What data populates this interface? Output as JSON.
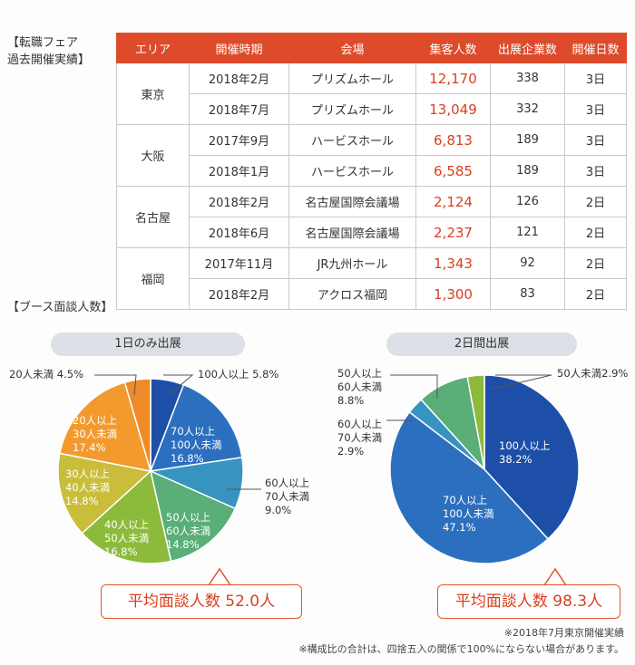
{
  "history_title": "【転職フェア\n過去開催実績】",
  "history_table": {
    "headers": [
      "エリア",
      "開催時期",
      "会場",
      "集客人数",
      "出展企業数",
      "開催日数"
    ],
    "groups": [
      {
        "area": "東京",
        "rows": [
          {
            "date": "2018年2月",
            "venue": "プリズムホール",
            "visitors": "12,170",
            "exhibitors": "338",
            "days": "3日"
          },
          {
            "date": "2018年7月",
            "venue": "プリズムホール",
            "visitors": "13,049",
            "exhibitors": "332",
            "days": "3日"
          }
        ]
      },
      {
        "area": "大阪",
        "rows": [
          {
            "date": "2017年9月",
            "venue": "ハービスホール",
            "visitors": "6,813",
            "exhibitors": "189",
            "days": "3日"
          },
          {
            "date": "2018年1月",
            "venue": "ハービスホール",
            "visitors": "6,585",
            "exhibitors": "189",
            "days": "3日"
          }
        ]
      },
      {
        "area": "名古屋",
        "rows": [
          {
            "date": "2018年2月",
            "venue": "名古屋国際会議場",
            "visitors": "2,124",
            "exhibitors": "126",
            "days": "2日"
          },
          {
            "date": "2018年6月",
            "venue": "名古屋国際会議場",
            "visitors": "2,237",
            "exhibitors": "121",
            "days": "2日"
          }
        ]
      },
      {
        "area": "福岡",
        "rows": [
          {
            "date": "2017年11月",
            "venue": "JR九州ホール",
            "visitors": "1,343",
            "exhibitors": "92",
            "days": "2日"
          },
          {
            "date": "2018年2月",
            "venue": "アクロス福岡",
            "visitors": "1,300",
            "exhibitors": "83",
            "days": "2日"
          }
        ]
      }
    ]
  },
  "booth_title": "【ブース面談人数】",
  "chart_data": [
    {
      "type": "pie",
      "title": "1日のみ出展",
      "slices": [
        {
          "label": "100人以上 5.8%",
          "value": 5.8,
          "color": "#1e4fa8"
        },
        {
          "label": "70人以上\n100人未満\n16.8%",
          "value": 16.8,
          "color": "#2d6fbf"
        },
        {
          "label": "60人以上\n70人未満\n9.0%",
          "value": 9.0,
          "color": "#3794c0"
        },
        {
          "label": "50人以上\n60人未満\n14.8%",
          "value": 14.8,
          "color": "#5aae78"
        },
        {
          "label": "40人以上\n50人未満\n16.8%",
          "value": 16.8,
          "color": "#8cbb3c"
        },
        {
          "label": "30人以上\n40人未満\n14.8%",
          "value": 14.8,
          "color": "#c9bd3a"
        },
        {
          "label": "20人以上\n30人未満\n17.4%",
          "value": 17.4,
          "color": "#f39a2f"
        },
        {
          "label": "20人未満 4.5%",
          "value": 4.5,
          "color": "#ee8a28"
        }
      ],
      "average": "平均面談人数 52.0人"
    },
    {
      "type": "pie",
      "title": "2日間出展",
      "slices": [
        {
          "label": "100人以上\n38.2%",
          "value": 38.2,
          "color": "#1e4fa8"
        },
        {
          "label": "70人以上\n100人未満\n47.1%",
          "value": 47.1,
          "color": "#2d6fbf"
        },
        {
          "label": "60人以上\n70人未満\n2.9%",
          "value": 2.9,
          "color": "#3794c0"
        },
        {
          "label": "50人以上\n60人未満\n8.8%",
          "value": 8.8,
          "color": "#5aae78"
        },
        {
          "label": "50人未満2.9%",
          "value": 2.9,
          "color": "#8cbb3c"
        }
      ],
      "average": "平均面談人数 98.3人"
    }
  ],
  "notes": [
    "※2018年7月東京開催実績",
    "※構成比の合計は、四捨五入の関係で100%にならない場合があります。"
  ]
}
